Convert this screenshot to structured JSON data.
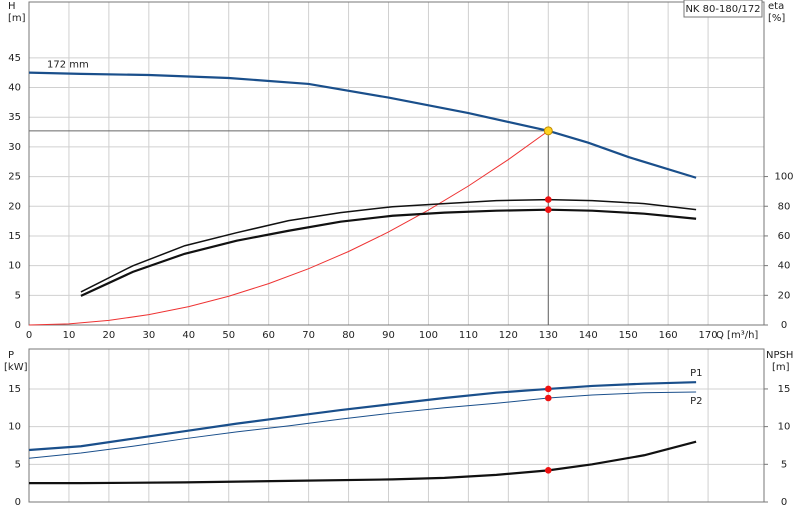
{
  "tag": "NK 80-180/172",
  "chart_data": [
    {
      "type": "line",
      "xlabel": "Q [m³/h]",
      "ylabel": "H",
      "yunit": "[m]",
      "y2label": "eta",
      "y2unit": "[%]",
      "xlim": [
        0,
        184
      ],
      "xticks": [
        0,
        10,
        20,
        30,
        40,
        50,
        60,
        70,
        80,
        90,
        100,
        110,
        120,
        130,
        140,
        150,
        160,
        170
      ],
      "xtick_labels": true,
      "ylim": [
        0,
        54.4
      ],
      "yticks": [
        0,
        5,
        10,
        15,
        20,
        25,
        30,
        35,
        40,
        45
      ],
      "y2lim": [
        0,
        217.6
      ],
      "y2ticks": [
        0,
        20,
        40,
        60,
        80,
        100
      ],
      "grid": true,
      "operating_point": {
        "x": 130,
        "y": 32.7
      },
      "series": [
        {
          "name": "172 mm",
          "color": "#1a4f8b",
          "weight": "bold",
          "markers": false,
          "x": [
            0,
            13,
            30,
            50,
            70,
            90,
            110,
            130,
            140,
            150,
            167
          ],
          "values": [
            42.5,
            42.3,
            42.1,
            41.6,
            40.6,
            38.3,
            35.7,
            32.7,
            30.7,
            28.3,
            24.8
          ]
        },
        {
          "color": "#ee3333",
          "weight": "thin",
          "markers": false,
          "x": [
            0,
            10,
            20,
            30,
            40,
            50,
            60,
            70,
            80,
            90,
            100,
            110,
            120,
            130
          ],
          "values": [
            0,
            0.19,
            0.77,
            1.74,
            3.1,
            4.84,
            6.97,
            9.48,
            12.38,
            15.67,
            19.35,
            23.41,
            27.86,
            32.7
          ]
        },
        {
          "color": "#111111",
          "weight": "normal",
          "axis": "y2",
          "markers": true,
          "x": [
            13,
            26,
            39,
            52,
            65,
            78,
            91,
            104,
            117,
            130,
            141,
            154,
            167
          ],
          "values": [
            22.3,
            39.9,
            53.4,
            62.2,
            70.3,
            75.7,
            79.7,
            81.8,
            83.8,
            84.5,
            83.8,
            81.8,
            77.7
          ]
        },
        {
          "color": "#111111",
          "weight": "bold",
          "axis": "y2",
          "markers": true,
          "x": [
            13,
            26,
            39,
            52,
            65,
            78,
            91,
            104,
            117,
            130,
            141,
            154,
            167
          ],
          "values": [
            19.6,
            35.8,
            48,
            56.8,
            63.5,
            69.6,
            73.6,
            75.7,
            77,
            77.7,
            77,
            75,
            71.6
          ]
        }
      ]
    },
    {
      "type": "line",
      "ylabel": "P",
      "yunit": "[kW]",
      "y2label": "NPSH",
      "y2unit": "[m]",
      "xlim": [
        0,
        184
      ],
      "xticks": [
        0,
        10,
        20,
        30,
        40,
        50,
        60,
        70,
        80,
        90,
        100,
        110,
        120,
        130,
        140,
        150,
        160,
        170
      ],
      "xtick_labels": false,
      "ylim": [
        0,
        20.3
      ],
      "yticks": [
        0,
        5,
        10,
        15
      ],
      "y2lim": [
        0,
        20.3
      ],
      "y2ticks": [
        0,
        5,
        10,
        15
      ],
      "grid": true,
      "series": [
        {
          "name": "P1",
          "color": "#1a4f8b",
          "weight": "bold",
          "markers": true,
          "x": [
            0,
            13,
            26,
            39,
            52,
            65,
            78,
            91,
            104,
            117,
            130,
            141,
            154,
            167
          ],
          "values": [
            6.9,
            7.4,
            8.4,
            9.4,
            10.4,
            11.3,
            12.2,
            13,
            13.8,
            14.5,
            15,
            15.4,
            15.7,
            15.9
          ]
        },
        {
          "name": "P2",
          "color": "#1a4f8b",
          "weight": "thin",
          "markers": true,
          "x": [
            0,
            13,
            26,
            39,
            52,
            65,
            78,
            91,
            104,
            117,
            130,
            141,
            154,
            167
          ],
          "values": [
            5.8,
            6.5,
            7.4,
            8.4,
            9.3,
            10.1,
            11,
            11.8,
            12.5,
            13.1,
            13.8,
            14.2,
            14.5,
            14.6
          ]
        },
        {
          "color": "#111111",
          "weight": "bold",
          "axis": "y2",
          "markers": true,
          "x": [
            0,
            13,
            39,
            65,
            91,
            104,
            117,
            130,
            141,
            154,
            167
          ],
          "values": [
            2.5,
            2.5,
            2.6,
            2.8,
            3,
            3.2,
            3.6,
            4.2,
            5,
            6.2,
            8
          ]
        }
      ]
    }
  ]
}
